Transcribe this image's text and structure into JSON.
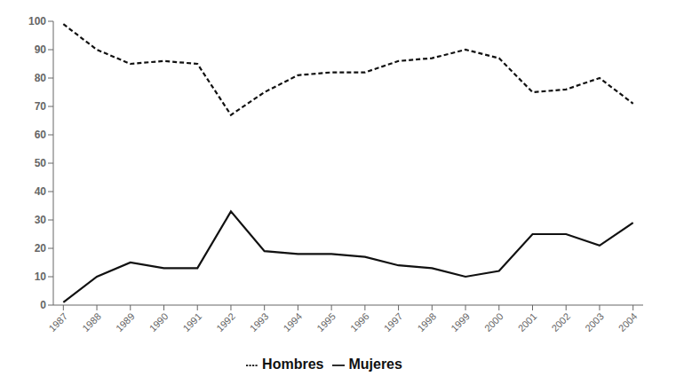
{
  "chart_data": {
    "type": "line",
    "x": [
      1987,
      1988,
      1989,
      1990,
      1991,
      1992,
      1993,
      1994,
      1995,
      1996,
      1997,
      1998,
      1999,
      2000,
      2001,
      2002,
      2003,
      2004
    ],
    "series": [
      {
        "name": "Mujeres",
        "color": "#111111",
        "line_style": "solid",
        "values": [
          1,
          10,
          15,
          13,
          13,
          33,
          19,
          18,
          18,
          17,
          14,
          13,
          10,
          12,
          25,
          25,
          21,
          29
        ]
      },
      {
        "name": "Hombres",
        "color": "#111111",
        "line_style": "dashed",
        "values": [
          99,
          90,
          85,
          86,
          85,
          67,
          75,
          81,
          82,
          82,
          86,
          87,
          90,
          87,
          75,
          76,
          80,
          71
        ]
      }
    ],
    "xlim": [
      1986.7,
      2004.3
    ],
    "xticks": [
      1987,
      1988,
      1989,
      1990,
      1991,
      1992,
      1993,
      1994,
      1995,
      1996,
      1997,
      1998,
      1999,
      2000,
      2001,
      2002,
      2003,
      2004
    ],
    "ylim": [
      0,
      100
    ],
    "yticks": [
      0,
      10,
      20,
      30,
      40,
      50,
      60,
      70,
      80,
      90,
      100
    ],
    "grid": false,
    "legend": "bottom"
  }
}
